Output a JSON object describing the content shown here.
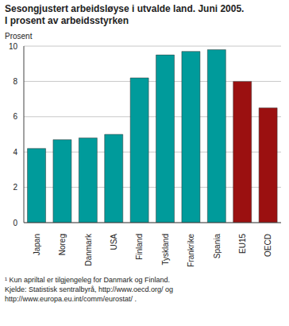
{
  "chart_data": {
    "type": "bar",
    "title": "Sesongjustert arbeidsløyse i utvalde land. Juni 2005.",
    "subtitle": "I prosent av arbeidsstyrken",
    "y_label": "Prosent",
    "categories": [
      "Japan",
      "Noreg",
      "Danmark",
      "USA",
      "Finland",
      "Tyskland",
      "Frankrike",
      "Spania",
      "EU15",
      "OECD"
    ],
    "values": [
      4.2,
      4.7,
      4.8,
      5.0,
      8.2,
      9.5,
      9.7,
      9.8,
      8.0,
      6.5
    ],
    "colors": [
      "#009b9b",
      "#009b9b",
      "#009b9b",
      "#009b9b",
      "#009b9b",
      "#009b9b",
      "#009b9b",
      "#009b9b",
      "#9b1010",
      "#9b1010"
    ],
    "ylim": [
      0,
      10
    ],
    "yticks": [
      0,
      2,
      4,
      6,
      8,
      10
    ],
    "grid": true,
    "annotations": [
      "¹ Kun apriltal er tilgjengeleg for Danmark og Finland.",
      "Kjelde: Statistisk sentralbyrå, http://www.oecd.org/ og http://www.europa.eu.int/comm/eurostat/ ."
    ]
  }
}
